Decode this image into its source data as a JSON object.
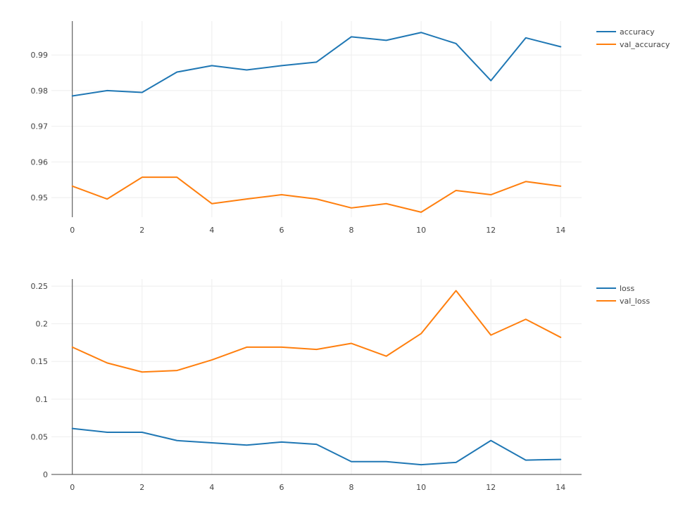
{
  "chart_data": [
    {
      "type": "line",
      "x": [
        0,
        1,
        2,
        3,
        4,
        5,
        6,
        7,
        8,
        9,
        10,
        11,
        12,
        13,
        14
      ],
      "series": [
        {
          "name": "accuracy",
          "color": "#1f77b4",
          "values": [
            0.9785,
            0.98,
            0.9795,
            0.9852,
            0.987,
            0.9858,
            0.987,
            0.988,
            0.9951,
            0.9941,
            0.9963,
            0.9932,
            0.9828,
            0.9948,
            0.9923
          ]
        },
        {
          "name": "val_accuracy",
          "color": "#ff7f0e",
          "values": [
            0.9532,
            0.9496,
            0.9557,
            0.9557,
            0.9483,
            0.9496,
            0.9508,
            0.9496,
            0.9471,
            0.9483,
            0.9459,
            0.952,
            0.9508,
            0.9545,
            0.9532
          ]
        }
      ],
      "xticks": [
        0,
        2,
        4,
        6,
        8,
        10,
        12,
        14
      ],
      "xtick_labels": [
        "0",
        "2",
        "4",
        "6",
        "8",
        "10",
        "12",
        "14"
      ],
      "yticks": [
        0.95,
        0.96,
        0.97,
        0.98,
        0.99
      ],
      "ytick_labels": [
        "0.95",
        "0.96",
        "0.97",
        "0.98",
        "0.99"
      ],
      "xlim": [
        -0.6,
        14.6
      ],
      "ylim": [
        0.9445,
        0.9995
      ],
      "title": "",
      "xlabel": "",
      "ylabel": "",
      "grid": true,
      "legend_position": "top-right"
    },
    {
      "type": "line",
      "x": [
        0,
        1,
        2,
        3,
        4,
        5,
        6,
        7,
        8,
        9,
        10,
        11,
        12,
        13,
        14
      ],
      "series": [
        {
          "name": "loss",
          "color": "#1f77b4",
          "values": [
            0.061,
            0.056,
            0.056,
            0.045,
            0.042,
            0.039,
            0.043,
            0.04,
            0.017,
            0.017,
            0.013,
            0.016,
            0.045,
            0.019,
            0.02
          ]
        },
        {
          "name": "val_loss",
          "color": "#ff7f0e",
          "values": [
            0.169,
            0.148,
            0.136,
            0.138,
            0.152,
            0.169,
            0.169,
            0.166,
            0.174,
            0.157,
            0.187,
            0.244,
            0.185,
            0.206,
            0.182
          ]
        }
      ],
      "xticks": [
        0,
        2,
        4,
        6,
        8,
        10,
        12,
        14
      ],
      "xtick_labels": [
        "0",
        "2",
        "4",
        "6",
        "8",
        "10",
        "12",
        "14"
      ],
      "yticks": [
        0,
        0.05,
        0.1,
        0.15,
        0.2,
        0.25
      ],
      "ytick_labels": [
        "0",
        "0.05",
        "0.1",
        "0.15",
        "0.2",
        "0.25"
      ],
      "xlim": [
        -0.6,
        14.6
      ],
      "ylim": [
        0,
        0.2594
      ],
      "title": "",
      "xlabel": "",
      "ylabel": "",
      "grid": true,
      "legend_position": "top-right"
    }
  ]
}
